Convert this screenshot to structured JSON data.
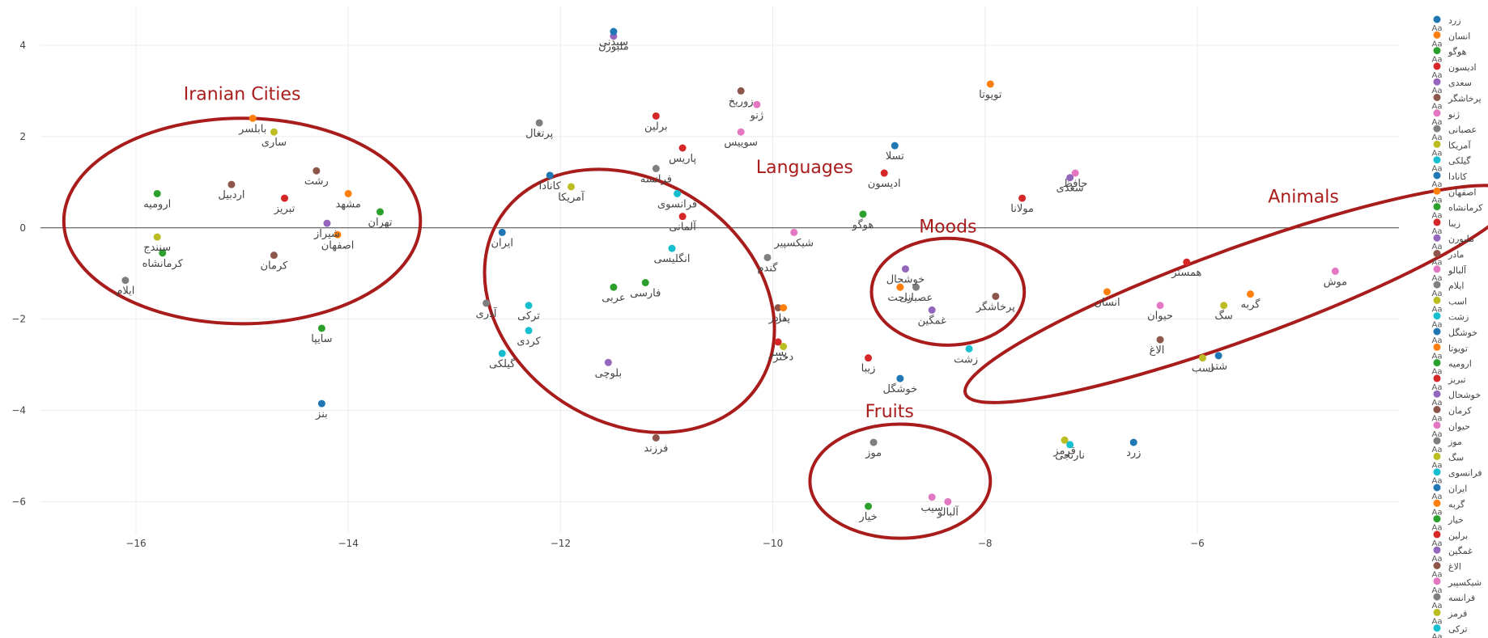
{
  "chart_data": {
    "type": "scatter",
    "xlim": [
      -16.9,
      -4.1
    ],
    "ylim": [
      -6.7,
      4.85
    ],
    "x_ticks": [
      -16,
      -14,
      -12,
      -10,
      -8,
      -6
    ],
    "y_ticks": [
      4,
      2,
      0,
      -2,
      -4,
      -6
    ],
    "x_tick_labels": [
      "−16",
      "−14",
      "−12",
      "−10",
      "−8",
      "−6"
    ],
    "y_tick_labels": [
      "4",
      "2",
      "0",
      "−2",
      "−4",
      "−6"
    ],
    "grid": true,
    "legend_position": "right",
    "legend_marker_text": "Aa",
    "points": [
      {
        "label": "زرد",
        "x": -6.6,
        "y": -4.7,
        "color": "#1f77b4"
      },
      {
        "label": "انسان",
        "x": -6.85,
        "y": -1.4,
        "color": "#ff7f0e"
      },
      {
        "label": "هوگو",
        "x": -9.15,
        "y": 0.3,
        "color": "#2ca02c"
      },
      {
        "label": "ادیسون",
        "x": -8.95,
        "y": 1.2,
        "color": "#d62728"
      },
      {
        "label": "سعدی",
        "x": -7.2,
        "y": 1.1,
        "color": "#9467bd"
      },
      {
        "label": "پرخاشگر",
        "x": -7.9,
        "y": -1.5,
        "color": "#8c564b"
      },
      {
        "label": "ژنو",
        "x": -10.15,
        "y": 2.7,
        "color": "#e377c2"
      },
      {
        "label": "عصبانی",
        "x": -8.65,
        "y": -1.3,
        "color": "#7f7f7f"
      },
      {
        "label": "آمریکا",
        "x": -11.9,
        "y": 0.9,
        "color": "#bcbd22"
      },
      {
        "label": "گیلکی",
        "x": -12.55,
        "y": -2.75,
        "color": "#17becf"
      },
      {
        "label": "کانادا",
        "x": -12.1,
        "y": 1.15,
        "color": "#1f77b4"
      },
      {
        "label": "اصفهان",
        "x": -14.1,
        "y": -0.15,
        "color": "#ff7f0e"
      },
      {
        "label": "کرمانشاه",
        "x": -15.75,
        "y": -0.55,
        "color": "#2ca02c"
      },
      {
        "label": "زیبا",
        "x": -9.1,
        "y": -2.85,
        "color": "#d62728"
      },
      {
        "label": "ملبورن",
        "x": -11.5,
        "y": 4.2,
        "color": "#9467bd"
      },
      {
        "label": "مادر",
        "x": -9.95,
        "y": -1.75,
        "color": "#8c564b"
      },
      {
        "label": "آلبالو",
        "x": -8.35,
        "y": -6.0,
        "color": "#e377c2"
      },
      {
        "label": "ایلام",
        "x": -16.1,
        "y": -1.15,
        "color": "#7f7f7f"
      },
      {
        "label": "اسب",
        "x": -5.95,
        "y": -2.85,
        "color": "#bcbd22"
      },
      {
        "label": "زشت",
        "x": -8.15,
        "y": -2.65,
        "color": "#17becf"
      },
      {
        "label": "خوشگل",
        "x": -8.8,
        "y": -3.3,
        "color": "#1f77b4"
      },
      {
        "label": "تویوتا",
        "x": -7.95,
        "y": 3.15,
        "color": "#ff7f0e"
      },
      {
        "label": "ارومیه",
        "x": -15.8,
        "y": 0.75,
        "color": "#2ca02c"
      },
      {
        "label": "تبریز",
        "x": -14.6,
        "y": 0.65,
        "color": "#d62728"
      },
      {
        "label": "خوشحال",
        "x": -8.75,
        "y": -0.9,
        "color": "#9467bd"
      },
      {
        "label": "کرمان",
        "x": -14.7,
        "y": -0.6,
        "color": "#8c564b"
      },
      {
        "label": "حیوان",
        "x": -6.35,
        "y": -1.7,
        "color": "#e377c2"
      },
      {
        "label": "موز",
        "x": -9.05,
        "y": -4.7,
        "color": "#7f7f7f"
      },
      {
        "label": "سگ",
        "x": -5.75,
        "y": -1.7,
        "color": "#bcbd22"
      },
      {
        "label": "فرانسوی",
        "x": -10.9,
        "y": 0.75,
        "color": "#17becf"
      },
      {
        "label": "ایران",
        "x": -12.55,
        "y": -0.1,
        "color": "#1f77b4"
      },
      {
        "label": "گربه",
        "x": -5.5,
        "y": -1.45,
        "color": "#ff7f0e"
      },
      {
        "label": "خیار",
        "x": -9.1,
        "y": -6.1,
        "color": "#2ca02c"
      },
      {
        "label": "برلین",
        "x": -11.1,
        "y": 2.45,
        "color": "#d62728"
      },
      {
        "label": "غمگین",
        "x": -8.5,
        "y": -1.8,
        "color": "#9467bd"
      },
      {
        "label": "الاغ",
        "x": -6.35,
        "y": -2.45,
        "color": "#8c564b"
      },
      {
        "label": "شیکسپیر",
        "x": -9.8,
        "y": -0.1,
        "color": "#e377c2"
      },
      {
        "label": "فرانسه",
        "x": -11.1,
        "y": 1.3,
        "color": "#7f7f7f"
      },
      {
        "label": "قرمز",
        "x": -7.25,
        "y": -4.65,
        "color": "#bcbd22"
      },
      {
        "label": "ترکی",
        "x": -12.3,
        "y": -1.7,
        "color": "#17becf"
      },
      {
        "label": "تسلا",
        "x": -8.85,
        "y": 1.8,
        "color": "#1f77b4"
      },
      {
        "label": "مشهد",
        "x": -14.0,
        "y": 0.75,
        "color": "#ff7f0e"
      },
      {
        "label": "تهران",
        "x": -13.7,
        "y": 0.35,
        "color": "#2ca02c"
      },
      {
        "label": "پاریس",
        "x": -10.85,
        "y": 1.75,
        "color": "#d62728"
      },
      {
        "label": "شیراز",
        "x": -14.2,
        "y": 0.1,
        "color": "#9467bd"
      },
      {
        "label": "رشت",
        "x": -14.3,
        "y": 1.25,
        "color": "#8c564b"
      },
      {
        "label": "سیب",
        "x": -8.5,
        "y": -5.9,
        "color": "#e377c2"
      },
      {
        "label": "پرتغال",
        "x": -12.2,
        "y": 2.3,
        "color": "#7f7f7f"
      },
      {
        "label": "ساری",
        "x": -14.7,
        "y": 2.1,
        "color": "#bcbd22"
      },
      {
        "label": "کردی",
        "x": -12.3,
        "y": -2.25,
        "color": "#17becf"
      },
      {
        "label": "بنز",
        "x": -14.25,
        "y": -3.85,
        "color": "#1f77b4"
      },
      {
        "label": "بابلسر",
        "x": -14.9,
        "y": 2.4,
        "color": "#ff7f0e"
      },
      {
        "label": "سایپا",
        "x": -14.25,
        "y": -2.2,
        "color": "#2ca02c"
      },
      {
        "label": "آلمانی",
        "x": -10.85,
        "y": 0.25,
        "color": "#d62728"
      },
      {
        "label": "بلوچی",
        "x": -11.55,
        "y": -2.95,
        "color": "#9467bd"
      },
      {
        "label": "اردبیل",
        "x": -15.1,
        "y": 0.95,
        "color": "#8c564b"
      },
      {
        "label": "انگلیسی",
        "x": -10.95,
        "y": -0.45,
        "color": "#17becf"
      },
      {
        "label": "آذری",
        "x": -12.7,
        "y": -1.65,
        "color": "#7f7f7f"
      },
      {
        "label": "سنندج",
        "x": -15.8,
        "y": -0.2,
        "color": "#bcbd22"
      },
      {
        "label": "عربی",
        "x": -11.5,
        "y": -1.3,
        "color": "#2ca02c"
      },
      {
        "label": "فارسی",
        "x": -11.2,
        "y": -1.2,
        "color": "#2ca02c"
      },
      {
        "label": "زوریخ",
        "x": -10.3,
        "y": 3.0,
        "color": "#8c564b"
      },
      {
        "label": "سوییس",
        "x": -10.3,
        "y": 2.1,
        "color": "#e377c2"
      },
      {
        "label": "سیدنی",
        "x": -11.5,
        "y": 4.3,
        "color": "#1f77b4"
      },
      {
        "label": "مولانا",
        "x": -7.65,
        "y": 0.65,
        "color": "#d62728"
      },
      {
        "label": "حافظ",
        "x": -7.15,
        "y": 1.2,
        "color": "#e377c2"
      },
      {
        "label": "همستر",
        "x": -6.1,
        "y": -0.75,
        "color": "#d62728"
      },
      {
        "label": "موش",
        "x": -4.7,
        "y": -0.95,
        "color": "#e377c2"
      },
      {
        "label": "شتر",
        "x": -5.8,
        "y": -2.8,
        "color": "#1f77b4"
      },
      {
        "label": "راحت",
        "x": -8.8,
        "y": -1.3,
        "color": "#ff7f0e"
      },
      {
        "label": "پدر",
        "x": -9.9,
        "y": -1.75,
        "color": "#ff7f0e"
      },
      {
        "label": "پسر",
        "x": -9.95,
        "y": -2.5,
        "color": "#d62728"
      },
      {
        "label": "دختر",
        "x": -9.9,
        "y": -2.6,
        "color": "#bcbd22"
      },
      {
        "label": "فرزند",
        "x": -11.1,
        "y": -4.6,
        "color": "#8c564b"
      },
      {
        "label": "نارنجی",
        "x": -7.2,
        "y": -4.75,
        "color": "#17becf"
      },
      {
        "label": "گندم",
        "x": -10.05,
        "y": -0.65,
        "color": "#7f7f7f"
      }
    ],
    "legend": [
      "زرد",
      "انسان",
      "هوگو",
      "ادیسون",
      "سعدی",
      "پرخاشگر",
      "ژنو",
      "عصبانی",
      "آمریکا",
      "گیلکی",
      "کانادا",
      "اصفهان",
      "کرمانشاه",
      "زیبا",
      "ملبورن",
      "مادر",
      "آلبالو",
      "ایلام",
      "اسب",
      "زشت",
      "خوشگل",
      "تویوتا",
      "ارومیه",
      "تبریز",
      "خوشحال",
      "کرمان",
      "حیوان",
      "موز",
      "سگ",
      "فرانسوی",
      "ایران",
      "گربه",
      "خیار",
      "برلین",
      "غمگین",
      "الاغ",
      "شیکسپیر",
      "فرانسه",
      "قرمز",
      "ترکی"
    ],
    "annotations": [
      {
        "text": "Iranian Cities",
        "x": -15.0,
        "y": 2.8
      },
      {
        "text": "Languages",
        "x": -9.7,
        "y": 1.2
      },
      {
        "text": "Moods",
        "x": -8.35,
        "y": -0.1
      },
      {
        "text": "Animals",
        "x": -5.0,
        "y": 0.55
      },
      {
        "text": "Fruits",
        "x": -8.9,
        "y": -4.15
      }
    ],
    "ellipses": [
      {
        "name": "iranian-cities-ellipse",
        "cx": -15.0,
        "cy": 0.15,
        "rx": 1.68,
        "ry": 2.25,
        "rotate": 0
      },
      {
        "name": "languages-ellipse",
        "cx": -11.35,
        "cy": -1.6,
        "rx": 1.45,
        "ry": 2.65,
        "rotate": 33
      },
      {
        "name": "moods-ellipse",
        "cx": -8.35,
        "cy": -1.4,
        "rx": 0.72,
        "ry": 1.17,
        "rotate": 0
      },
      {
        "name": "animals-ellipse",
        "cx": -5.6,
        "cy": -1.45,
        "rx": 2.75,
        "ry": 1.0,
        "rotate": -20
      },
      {
        "name": "fruits-ellipse",
        "cx": -8.8,
        "cy": -5.55,
        "rx": 0.85,
        "ry": 1.25,
        "rotate": 0
      }
    ],
    "annotation_color": "#a81c1c",
    "label_overrides": {
      "الاغ": "right",
      "زشت": "right"
    }
  }
}
